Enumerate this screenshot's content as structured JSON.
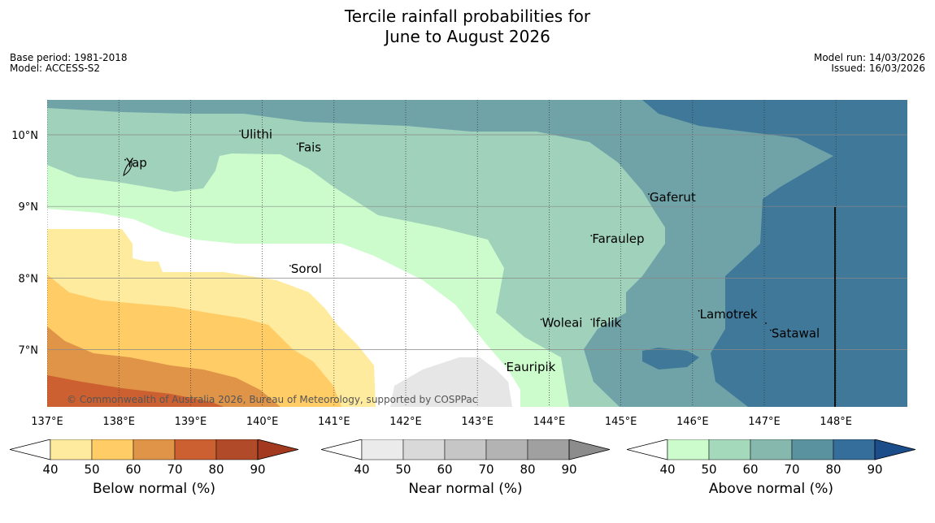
{
  "title_line1": "Tercile rainfall probabilities for",
  "title_line2": "June to August 2026",
  "meta_left": [
    "Base period: 1981-2018",
    "Model: ACCESS-S2"
  ],
  "meta_right": [
    "Model run: 14/03/2026",
    "Issued: 16/03/2026"
  ],
  "map": {
    "lon_range": [
      137,
      149
    ],
    "lat_range": [
      6.2,
      10.5
    ],
    "lon_ticks": [
      "137°E",
      "138°E",
      "139°E",
      "140°E",
      "141°E",
      "142°E",
      "143°E",
      "144°E",
      "145°E",
      "146°E",
      "147°E",
      "148°E"
    ],
    "lat_ticks": [
      "10°N",
      "9°N",
      "8°N",
      "7°N"
    ],
    "places": [
      {
        "name": "Yap",
        "lon": 138.1,
        "lat": 9.55
      },
      {
        "name": "Ulithi",
        "lon": 139.7,
        "lat": 9.95
      },
      {
        "name": "Fais",
        "lon": 140.5,
        "lat": 9.77
      },
      {
        "name": "Gaferut",
        "lon": 145.4,
        "lat": 9.07
      },
      {
        "name": "Faraulep",
        "lon": 144.6,
        "lat": 8.49
      },
      {
        "name": "Sorol",
        "lon": 140.4,
        "lat": 8.07
      },
      {
        "name": "Woleai",
        "lon": 143.9,
        "lat": 7.32
      },
      {
        "name": "Ifalik",
        "lon": 144.6,
        "lat": 7.32
      },
      {
        "name": "Lamotrek",
        "lon": 146.1,
        "lat": 7.44
      },
      {
        "name": "Satawal",
        "lon": 147.1,
        "lat": 7.17
      },
      {
        "name": "Eauripik",
        "lon": 143.4,
        "lat": 6.7
      }
    ],
    "attribution": "© Commonwealth of Australia 2026, Bureau of Meteorology, supported by COSPPac"
  },
  "colorbars": [
    {
      "label": "Below normal (%)",
      "ticks": [
        "40",
        "50",
        "60",
        "70",
        "80",
        "90"
      ],
      "colors": [
        "#ffeb9e",
        "#ffcc66",
        "#e09448",
        "#cc6030",
        "#b04a28"
      ],
      "end": "#a33a20"
    },
    {
      "label": "Near normal (%)",
      "ticks": [
        "40",
        "50",
        "60",
        "70",
        "80",
        "90"
      ],
      "colors": [
        "#ebebeb",
        "#d9d9d9",
        "#c6c6c6",
        "#b3b3b3",
        "#a0a0a0"
      ],
      "end": "#8c8c8c"
    },
    {
      "label": "Above normal (%)",
      "ticks": [
        "40",
        "50",
        "60",
        "70",
        "80",
        "90"
      ],
      "colors": [
        "#ccfccc",
        "#a5d9bc",
        "#86b8ae",
        "#5b92a0",
        "#356e9a"
      ],
      "end": "#1a4d8a"
    }
  ]
}
